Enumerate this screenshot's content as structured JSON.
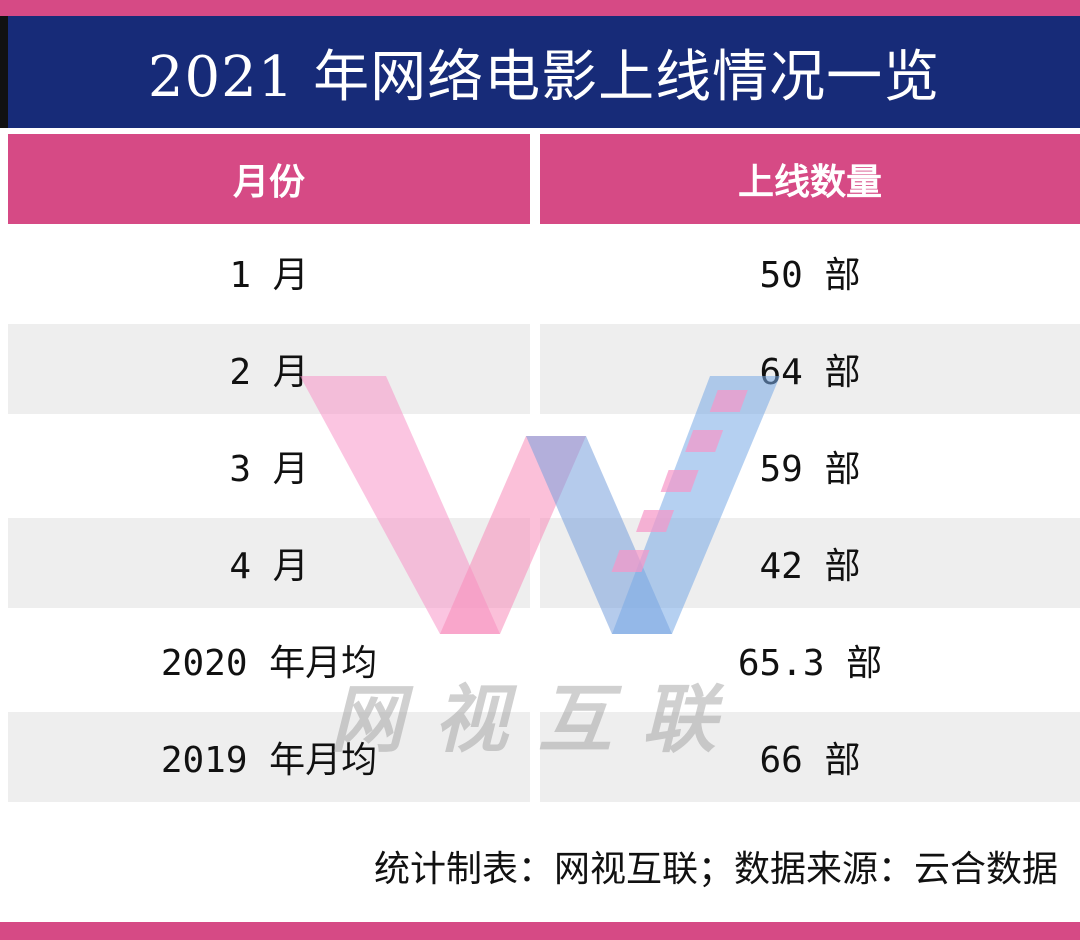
{
  "title": "2021 年网络电影上线情况一览",
  "table": {
    "headers": [
      "月份",
      "上线数量"
    ],
    "rows": [
      {
        "month": "1 月",
        "count": "50 部"
      },
      {
        "month": "2 月",
        "count": "64 部"
      },
      {
        "month": "3 月",
        "count": "59 部"
      },
      {
        "month": "4 月",
        "count": "42 部"
      },
      {
        "month": "2020 年月均",
        "count": "65.3 部"
      },
      {
        "month": "2019 年月均",
        "count": "66 部"
      }
    ]
  },
  "footer": "统计制表：网视互联；数据来源：云合数据",
  "watermark": {
    "text": "网视互联",
    "logo_icon": "w-logo-icon"
  },
  "colors": {
    "accent": "#d64a85",
    "title_bg": "#172b78",
    "row_shade": "#eeeeee"
  }
}
